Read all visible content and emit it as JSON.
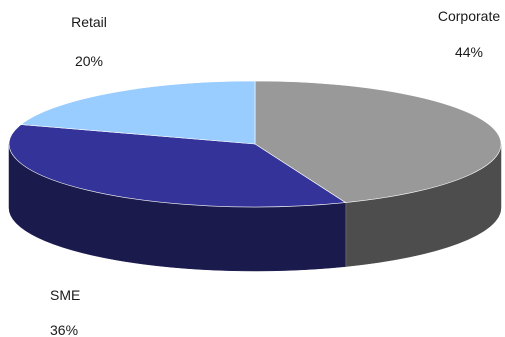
{
  "chart_data": {
    "type": "pie",
    "three_d": true,
    "categories": [
      "Corporate",
      "SME",
      "Retail"
    ],
    "values": [
      44,
      36,
      20
    ],
    "value_labels": [
      "44%",
      "36%",
      "20%"
    ],
    "colors": {
      "Corporate": {
        "top": "#999999",
        "side": "#4d4d4d"
      },
      "SME": {
        "top": "#333399",
        "side": "#1a1a4d"
      },
      "Retail": {
        "top": "#99ccff",
        "side": "#4d6680"
      }
    },
    "legend": "none",
    "start_position": "12 o'clock, clockwise"
  }
}
